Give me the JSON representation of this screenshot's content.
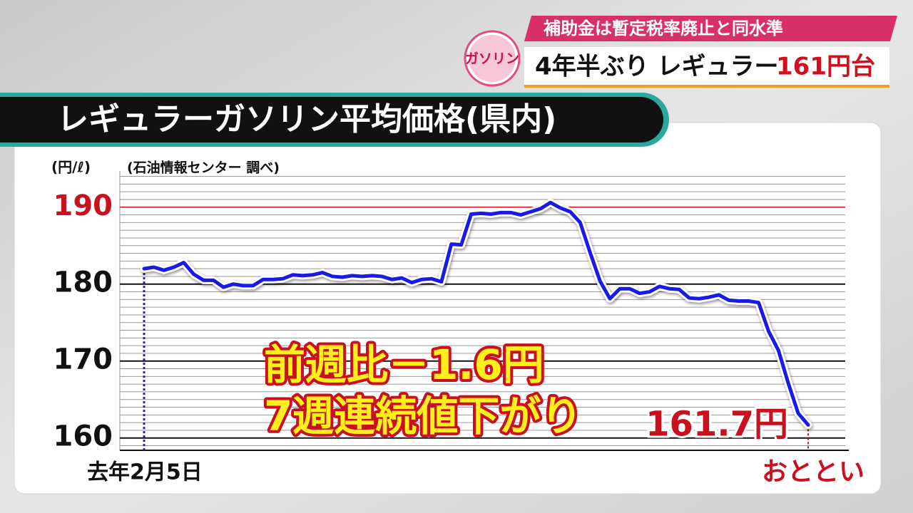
{
  "banner": {
    "subtitle": "補助金は暫定税率廃止と同水準",
    "badge": "ガソリン",
    "headline": "4年半ぶり レギュラー",
    "headline_highlight": "161円台"
  },
  "chart_data": {
    "type": "line",
    "title": "レギュラーガソリン平均価格(県内)",
    "y_label": "(円/ℓ)",
    "source": "(石油情報センター 調べ)",
    "categories": [
      "去年2月5日",
      null,
      null,
      null,
      null,
      null,
      null,
      null,
      null,
      null,
      null,
      null,
      null,
      null,
      null,
      null,
      null,
      null,
      null,
      null,
      null,
      null,
      null,
      null,
      null,
      null,
      null,
      null,
      null,
      null,
      null,
      null,
      null,
      null,
      null,
      null,
      null,
      null,
      null,
      null,
      null,
      null,
      null,
      null,
      null,
      null,
      null,
      null,
      null,
      null,
      null,
      null,
      null,
      null,
      null,
      null,
      null,
      null,
      null,
      null,
      null,
      null,
      null,
      null,
      null,
      null,
      null,
      "おととい"
    ],
    "values": [
      182.0,
      182.2,
      181.8,
      182.2,
      182.8,
      181.3,
      180.5,
      180.5,
      179.6,
      180.0,
      179.8,
      179.8,
      180.6,
      180.6,
      180.7,
      181.2,
      181.1,
      181.2,
      181.5,
      181.0,
      180.9,
      181.1,
      181.0,
      181.1,
      181.0,
      180.6,
      180.8,
      180.2,
      180.6,
      180.7,
      180.3,
      185.2,
      185.1,
      189.1,
      189.2,
      189.1,
      189.3,
      189.3,
      189.0,
      189.4,
      189.8,
      190.6,
      189.9,
      189.4,
      188.0,
      184.1,
      180.4,
      178.1,
      179.4,
      179.4,
      178.8,
      179.0,
      179.7,
      179.4,
      179.3,
      178.2,
      178.1,
      178.3,
      178.6,
      177.9,
      177.8,
      177.8,
      177.6,
      173.9,
      171.4,
      167.1,
      163.2,
      161.7
    ],
    "value_labels": [
      null,
      null,
      null,
      null,
      null,
      null,
      null,
      null,
      null,
      null,
      null,
      null,
      null,
      null,
      null,
      null,
      null,
      null,
      null,
      null,
      null,
      null,
      null,
      null,
      null,
      null,
      null,
      null,
      null,
      null,
      null,
      null,
      null,
      null,
      null,
      null,
      null,
      null,
      null,
      null,
      null,
      null,
      null,
      null,
      null,
      null,
      null,
      null,
      null,
      null,
      null,
      null,
      null,
      null,
      null,
      null,
      null,
      null,
      null,
      null,
      null,
      null,
      null,
      null,
      null,
      null,
      null,
      "161.7円"
    ],
    "color": "#1a1ae6",
    "ylim": [
      158.4,
      194.7
    ],
    "yticks": [
      160,
      170,
      180,
      190
    ],
    "minor_grid_step": 1,
    "reference_line": {
      "value": 190,
      "color": "#c8101e"
    },
    "annotations": [
      "前週比－1.6円",
      "7週連続値下がり"
    ]
  }
}
